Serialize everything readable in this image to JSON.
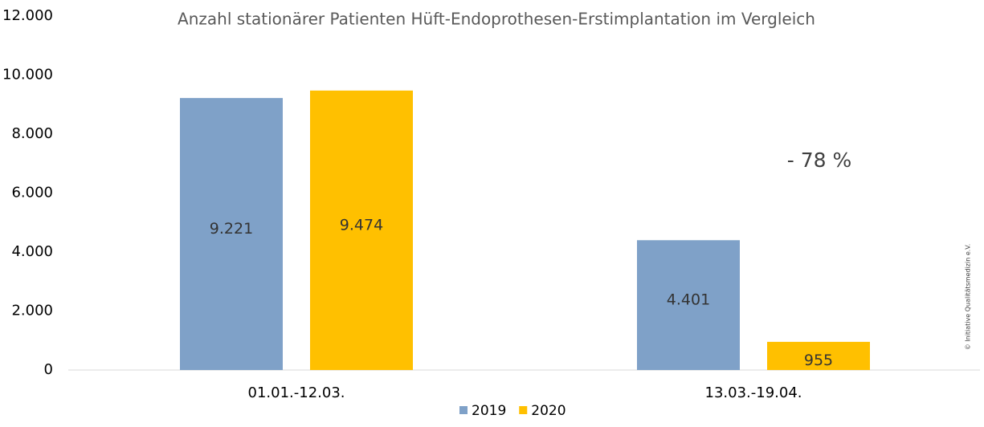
{
  "chart_data": {
    "type": "bar",
    "title": "Anzahl stationärer Patienten Hüft-Endoprothesen-Erstimplantation im Vergleich",
    "categories": [
      "01.01.-12.03.",
      "13.03.-19.04."
    ],
    "series": [
      {
        "name": "2019",
        "color": "#7fa1c8",
        "values": [
          9221,
          4401
        ],
        "value_labels": [
          "9.221",
          "4.401"
        ]
      },
      {
        "name": "2020",
        "color": "#ffc000",
        "values": [
          9474,
          955
        ],
        "value_labels": [
          "9.474",
          "955"
        ]
      }
    ],
    "ylim": [
      0,
      12000
    ],
    "yticks": [
      0,
      {
        "value": 2000,
        "label": "2.000"
      },
      {
        "value": 4000,
        "label": "4.000"
      },
      {
        "value": 6000,
        "label": "6.000"
      },
      {
        "value": 8000,
        "label": "8.000"
      },
      {
        "value": 10000,
        "label": "10.000"
      },
      {
        "value": 12000,
        "label": "12.000"
      }
    ],
    "grid": false,
    "annotations": [
      "- 78 %",
      "© Initiative Qualitätsmedizin e.V."
    ]
  }
}
